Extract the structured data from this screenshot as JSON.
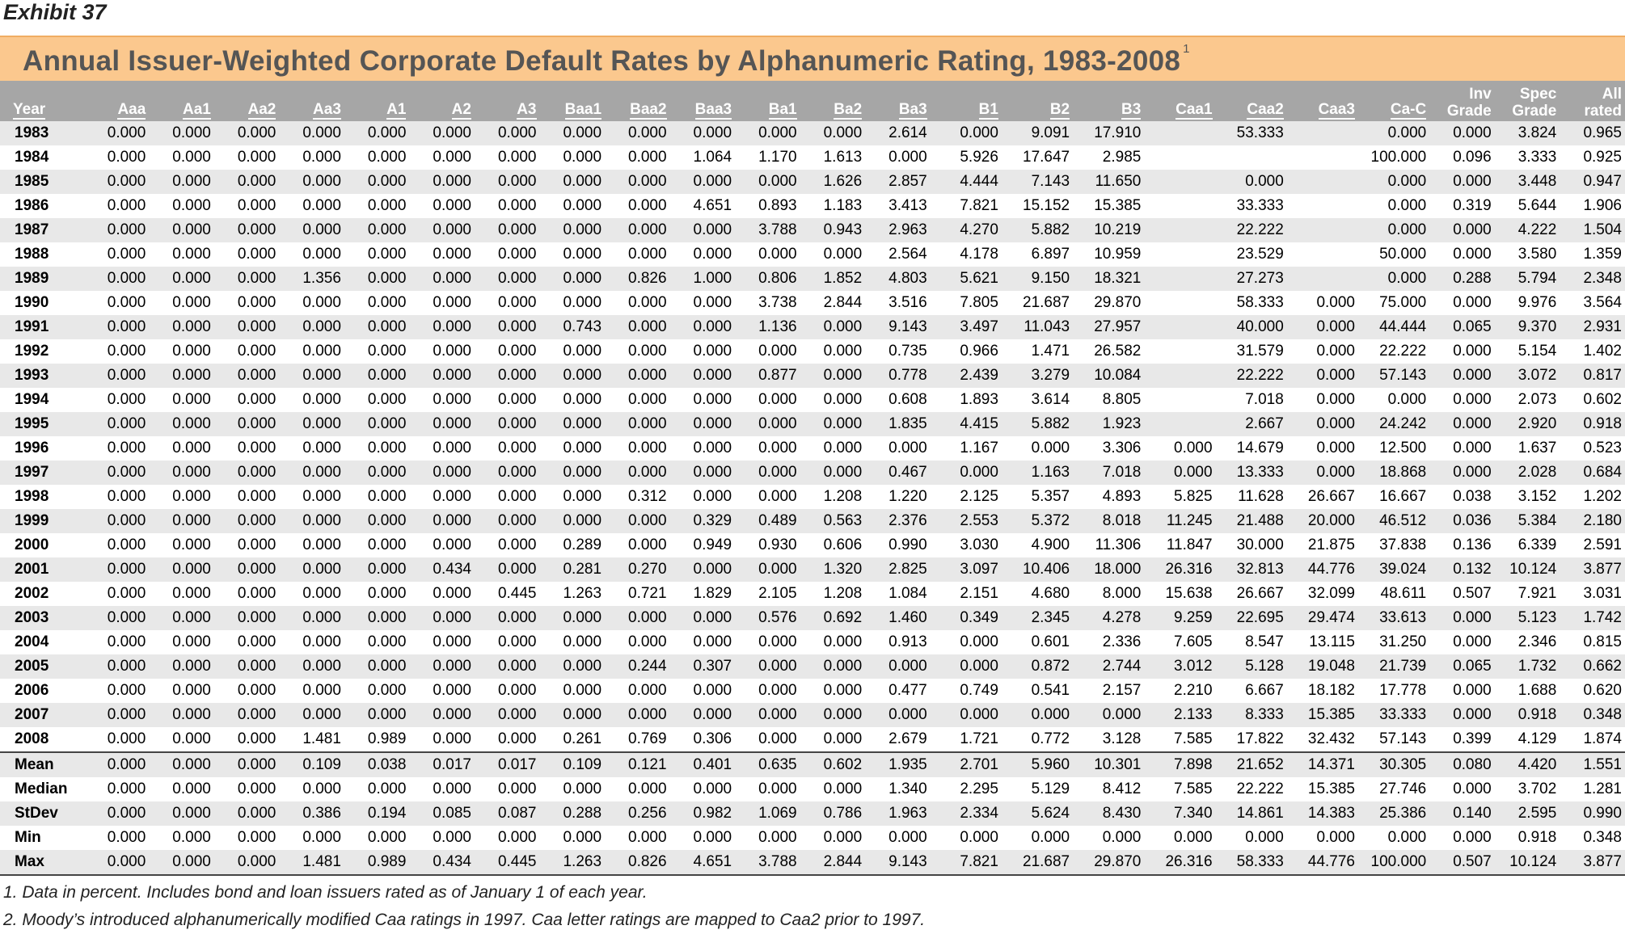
{
  "exhibit": "Exhibit 37",
  "title": "Annual Issuer-Weighted Corporate Default Rates by Alphanumeric Rating, 1983-2008",
  "title_sup": "1",
  "headers": [
    "Year",
    "Aaa",
    "Aa1",
    "Aa2",
    "Aa3",
    "A1",
    "A2",
    "A3",
    "Baa1",
    "Baa2",
    "Baa3",
    "Ba1",
    "Ba2",
    "Ba3",
    "B1",
    "B2",
    "B3",
    "Caa1",
    "Caa2",
    "Caa3",
    "Ca-C",
    [
      "Inv",
      "Grade"
    ],
    [
      "Spec",
      "Grade"
    ],
    [
      "All",
      "rated"
    ]
  ],
  "rows": [
    [
      "1983",
      "0.000",
      "0.000",
      "0.000",
      "0.000",
      "0.000",
      "0.000",
      "0.000",
      "0.000",
      "0.000",
      "0.000",
      "0.000",
      "0.000",
      "2.614",
      "0.000",
      "9.091",
      "17.910",
      "",
      "53.333",
      "",
      "0.000",
      "0.000",
      "3.824",
      "0.965"
    ],
    [
      "1984",
      "0.000",
      "0.000",
      "0.000",
      "0.000",
      "0.000",
      "0.000",
      "0.000",
      "0.000",
      "0.000",
      "1.064",
      "1.170",
      "1.613",
      "0.000",
      "5.926",
      "17.647",
      "2.985",
      "",
      "",
      "",
      "100.000",
      "0.096",
      "3.333",
      "0.925"
    ],
    [
      "1985",
      "0.000",
      "0.000",
      "0.000",
      "0.000",
      "0.000",
      "0.000",
      "0.000",
      "0.000",
      "0.000",
      "0.000",
      "0.000",
      "1.626",
      "2.857",
      "4.444",
      "7.143",
      "11.650",
      "",
      "0.000",
      "",
      "0.000",
      "0.000",
      "3.448",
      "0.947"
    ],
    [
      "1986",
      "0.000",
      "0.000",
      "0.000",
      "0.000",
      "0.000",
      "0.000",
      "0.000",
      "0.000",
      "0.000",
      "4.651",
      "0.893",
      "1.183",
      "3.413",
      "7.821",
      "15.152",
      "15.385",
      "",
      "33.333",
      "",
      "0.000",
      "0.319",
      "5.644",
      "1.906"
    ],
    [
      "1987",
      "0.000",
      "0.000",
      "0.000",
      "0.000",
      "0.000",
      "0.000",
      "0.000",
      "0.000",
      "0.000",
      "0.000",
      "3.788",
      "0.943",
      "2.963",
      "4.270",
      "5.882",
      "10.219",
      "",
      "22.222",
      "",
      "0.000",
      "0.000",
      "4.222",
      "1.504"
    ],
    [
      "1988",
      "0.000",
      "0.000",
      "0.000",
      "0.000",
      "0.000",
      "0.000",
      "0.000",
      "0.000",
      "0.000",
      "0.000",
      "0.000",
      "0.000",
      "2.564",
      "4.178",
      "6.897",
      "10.959",
      "",
      "23.529",
      "",
      "50.000",
      "0.000",
      "3.580",
      "1.359"
    ],
    [
      "1989",
      "0.000",
      "0.000",
      "0.000",
      "1.356",
      "0.000",
      "0.000",
      "0.000",
      "0.000",
      "0.826",
      "1.000",
      "0.806",
      "1.852",
      "4.803",
      "5.621",
      "9.150",
      "18.321",
      "",
      "27.273",
      "",
      "0.000",
      "0.288",
      "5.794",
      "2.348"
    ],
    [
      "1990",
      "0.000",
      "0.000",
      "0.000",
      "0.000",
      "0.000",
      "0.000",
      "0.000",
      "0.000",
      "0.000",
      "0.000",
      "3.738",
      "2.844",
      "3.516",
      "7.805",
      "21.687",
      "29.870",
      "",
      "58.333",
      "0.000",
      "75.000",
      "0.000",
      "9.976",
      "3.564"
    ],
    [
      "1991",
      "0.000",
      "0.000",
      "0.000",
      "0.000",
      "0.000",
      "0.000",
      "0.000",
      "0.743",
      "0.000",
      "0.000",
      "1.136",
      "0.000",
      "9.143",
      "3.497",
      "11.043",
      "27.957",
      "",
      "40.000",
      "0.000",
      "44.444",
      "0.065",
      "9.370",
      "2.931"
    ],
    [
      "1992",
      "0.000",
      "0.000",
      "0.000",
      "0.000",
      "0.000",
      "0.000",
      "0.000",
      "0.000",
      "0.000",
      "0.000",
      "0.000",
      "0.000",
      "0.735",
      "0.966",
      "1.471",
      "26.582",
      "",
      "31.579",
      "0.000",
      "22.222",
      "0.000",
      "5.154",
      "1.402"
    ],
    [
      "1993",
      "0.000",
      "0.000",
      "0.000",
      "0.000",
      "0.000",
      "0.000",
      "0.000",
      "0.000",
      "0.000",
      "0.000",
      "0.877",
      "0.000",
      "0.778",
      "2.439",
      "3.279",
      "10.084",
      "",
      "22.222",
      "0.000",
      "57.143",
      "0.000",
      "3.072",
      "0.817"
    ],
    [
      "1994",
      "0.000",
      "0.000",
      "0.000",
      "0.000",
      "0.000",
      "0.000",
      "0.000",
      "0.000",
      "0.000",
      "0.000",
      "0.000",
      "0.000",
      "0.608",
      "1.893",
      "3.614",
      "8.805",
      "",
      "7.018",
      "0.000",
      "0.000",
      "0.000",
      "2.073",
      "0.602"
    ],
    [
      "1995",
      "0.000",
      "0.000",
      "0.000",
      "0.000",
      "0.000",
      "0.000",
      "0.000",
      "0.000",
      "0.000",
      "0.000",
      "0.000",
      "0.000",
      "1.835",
      "4.415",
      "5.882",
      "1.923",
      "",
      "2.667",
      "0.000",
      "24.242",
      "0.000",
      "2.920",
      "0.918"
    ],
    [
      "1996",
      "0.000",
      "0.000",
      "0.000",
      "0.000",
      "0.000",
      "0.000",
      "0.000",
      "0.000",
      "0.000",
      "0.000",
      "0.000",
      "0.000",
      "0.000",
      "1.167",
      "0.000",
      "3.306",
      "0.000",
      "14.679",
      "0.000",
      "12.500",
      "0.000",
      "1.637",
      "0.523"
    ],
    [
      "1997",
      "0.000",
      "0.000",
      "0.000",
      "0.000",
      "0.000",
      "0.000",
      "0.000",
      "0.000",
      "0.000",
      "0.000",
      "0.000",
      "0.000",
      "0.467",
      "0.000",
      "1.163",
      "7.018",
      "0.000",
      "13.333",
      "0.000",
      "18.868",
      "0.000",
      "2.028",
      "0.684"
    ],
    [
      "1998",
      "0.000",
      "0.000",
      "0.000",
      "0.000",
      "0.000",
      "0.000",
      "0.000",
      "0.000",
      "0.312",
      "0.000",
      "0.000",
      "1.208",
      "1.220",
      "2.125",
      "5.357",
      "4.893",
      "5.825",
      "11.628",
      "26.667",
      "16.667",
      "0.038",
      "3.152",
      "1.202"
    ],
    [
      "1999",
      "0.000",
      "0.000",
      "0.000",
      "0.000",
      "0.000",
      "0.000",
      "0.000",
      "0.000",
      "0.000",
      "0.329",
      "0.489",
      "0.563",
      "2.376",
      "2.553",
      "5.372",
      "8.018",
      "11.245",
      "21.488",
      "20.000",
      "46.512",
      "0.036",
      "5.384",
      "2.180"
    ],
    [
      "2000",
      "0.000",
      "0.000",
      "0.000",
      "0.000",
      "0.000",
      "0.000",
      "0.000",
      "0.289",
      "0.000",
      "0.949",
      "0.930",
      "0.606",
      "0.990",
      "3.030",
      "4.900",
      "11.306",
      "11.847",
      "30.000",
      "21.875",
      "37.838",
      "0.136",
      "6.339",
      "2.591"
    ],
    [
      "2001",
      "0.000",
      "0.000",
      "0.000",
      "0.000",
      "0.000",
      "0.434",
      "0.000",
      "0.281",
      "0.270",
      "0.000",
      "0.000",
      "1.320",
      "2.825",
      "3.097",
      "10.406",
      "18.000",
      "26.316",
      "32.813",
      "44.776",
      "39.024",
      "0.132",
      "10.124",
      "3.877"
    ],
    [
      "2002",
      "0.000",
      "0.000",
      "0.000",
      "0.000",
      "0.000",
      "0.000",
      "0.445",
      "1.263",
      "0.721",
      "1.829",
      "2.105",
      "1.208",
      "1.084",
      "2.151",
      "4.680",
      "8.000",
      "15.638",
      "26.667",
      "32.099",
      "48.611",
      "0.507",
      "7.921",
      "3.031"
    ],
    [
      "2003",
      "0.000",
      "0.000",
      "0.000",
      "0.000",
      "0.000",
      "0.000",
      "0.000",
      "0.000",
      "0.000",
      "0.000",
      "0.576",
      "0.692",
      "1.460",
      "0.349",
      "2.345",
      "4.278",
      "9.259",
      "22.695",
      "29.474",
      "33.613",
      "0.000",
      "5.123",
      "1.742"
    ],
    [
      "2004",
      "0.000",
      "0.000",
      "0.000",
      "0.000",
      "0.000",
      "0.000",
      "0.000",
      "0.000",
      "0.000",
      "0.000",
      "0.000",
      "0.000",
      "0.913",
      "0.000",
      "0.601",
      "2.336",
      "7.605",
      "8.547",
      "13.115",
      "31.250",
      "0.000",
      "2.346",
      "0.815"
    ],
    [
      "2005",
      "0.000",
      "0.000",
      "0.000",
      "0.000",
      "0.000",
      "0.000",
      "0.000",
      "0.000",
      "0.244",
      "0.307",
      "0.000",
      "0.000",
      "0.000",
      "0.000",
      "0.872",
      "2.744",
      "3.012",
      "5.128",
      "19.048",
      "21.739",
      "0.065",
      "1.732",
      "0.662"
    ],
    [
      "2006",
      "0.000",
      "0.000",
      "0.000",
      "0.000",
      "0.000",
      "0.000",
      "0.000",
      "0.000",
      "0.000",
      "0.000",
      "0.000",
      "0.000",
      "0.477",
      "0.749",
      "0.541",
      "2.157",
      "2.210",
      "6.667",
      "18.182",
      "17.778",
      "0.000",
      "1.688",
      "0.620"
    ],
    [
      "2007",
      "0.000",
      "0.000",
      "0.000",
      "0.000",
      "0.000",
      "0.000",
      "0.000",
      "0.000",
      "0.000",
      "0.000",
      "0.000",
      "0.000",
      "0.000",
      "0.000",
      "0.000",
      "0.000",
      "2.133",
      "8.333",
      "15.385",
      "33.333",
      "0.000",
      "0.918",
      "0.348"
    ],
    [
      "2008",
      "0.000",
      "0.000",
      "0.000",
      "1.481",
      "0.989",
      "0.000",
      "0.000",
      "0.261",
      "0.769",
      "0.306",
      "0.000",
      "0.000",
      "2.679",
      "1.721",
      "0.772",
      "3.128",
      "7.585",
      "17.822",
      "32.432",
      "57.143",
      "0.399",
      "4.129",
      "1.874"
    ]
  ],
  "stats": [
    [
      "Mean",
      "0.000",
      "0.000",
      "0.000",
      "0.109",
      "0.038",
      "0.017",
      "0.017",
      "0.109",
      "0.121",
      "0.401",
      "0.635",
      "0.602",
      "1.935",
      "2.701",
      "5.960",
      "10.301",
      "7.898",
      "21.652",
      "14.371",
      "30.305",
      "0.080",
      "4.420",
      "1.551"
    ],
    [
      "Median",
      "0.000",
      "0.000",
      "0.000",
      "0.000",
      "0.000",
      "0.000",
      "0.000",
      "0.000",
      "0.000",
      "0.000",
      "0.000",
      "0.000",
      "1.340",
      "2.295",
      "5.129",
      "8.412",
      "7.585",
      "22.222",
      "15.385",
      "27.746",
      "0.000",
      "3.702",
      "1.281"
    ],
    [
      "StDev",
      "0.000",
      "0.000",
      "0.000",
      "0.386",
      "0.194",
      "0.085",
      "0.087",
      "0.288",
      "0.256",
      "0.982",
      "1.069",
      "0.786",
      "1.963",
      "2.334",
      "5.624",
      "8.430",
      "7.340",
      "14.861",
      "14.383",
      "25.386",
      "0.140",
      "2.595",
      "0.990"
    ],
    [
      "Min",
      "0.000",
      "0.000",
      "0.000",
      "0.000",
      "0.000",
      "0.000",
      "0.000",
      "0.000",
      "0.000",
      "0.000",
      "0.000",
      "0.000",
      "0.000",
      "0.000",
      "0.000",
      "0.000",
      "0.000",
      "0.000",
      "0.000",
      "0.000",
      "0.000",
      "0.918",
      "0.348"
    ],
    [
      "Max",
      "0.000",
      "0.000",
      "0.000",
      "1.481",
      "0.989",
      "0.434",
      "0.445",
      "1.263",
      "0.826",
      "4.651",
      "3.788",
      "2.844",
      "9.143",
      "7.821",
      "21.687",
      "29.870",
      "26.316",
      "58.333",
      "44.776",
      "100.000",
      "0.507",
      "10.124",
      "3.877"
    ]
  ],
  "notes": [
    "1. Data in percent. Includes bond and loan issuers rated as of January 1 of each year.",
    "2. Moody’s introduced alphanumerically modified Caa ratings in 1997. Caa letter ratings are mapped to Caa2 prior to 1997."
  ]
}
